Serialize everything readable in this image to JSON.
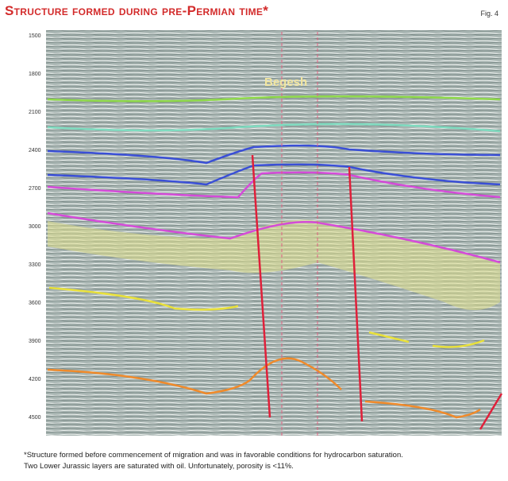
{
  "header": {
    "title": "Structure formed during pre-Permian time*",
    "figure": "Fig. 4"
  },
  "section": {
    "label": "Begesh",
    "depth_labels": [
      "1500",
      "1800",
      "2100",
      "2400",
      "2700",
      "3000",
      "3300",
      "3600",
      "3900",
      "4200",
      "4500"
    ]
  },
  "caption": [
    "*Structure formed before commencement of migration and was in favorable conditions for hydrocarbon saturation.",
    "Two Lower Jurassic layers are saturated with oil. Unfortunately, porosity is <11%."
  ]
}
